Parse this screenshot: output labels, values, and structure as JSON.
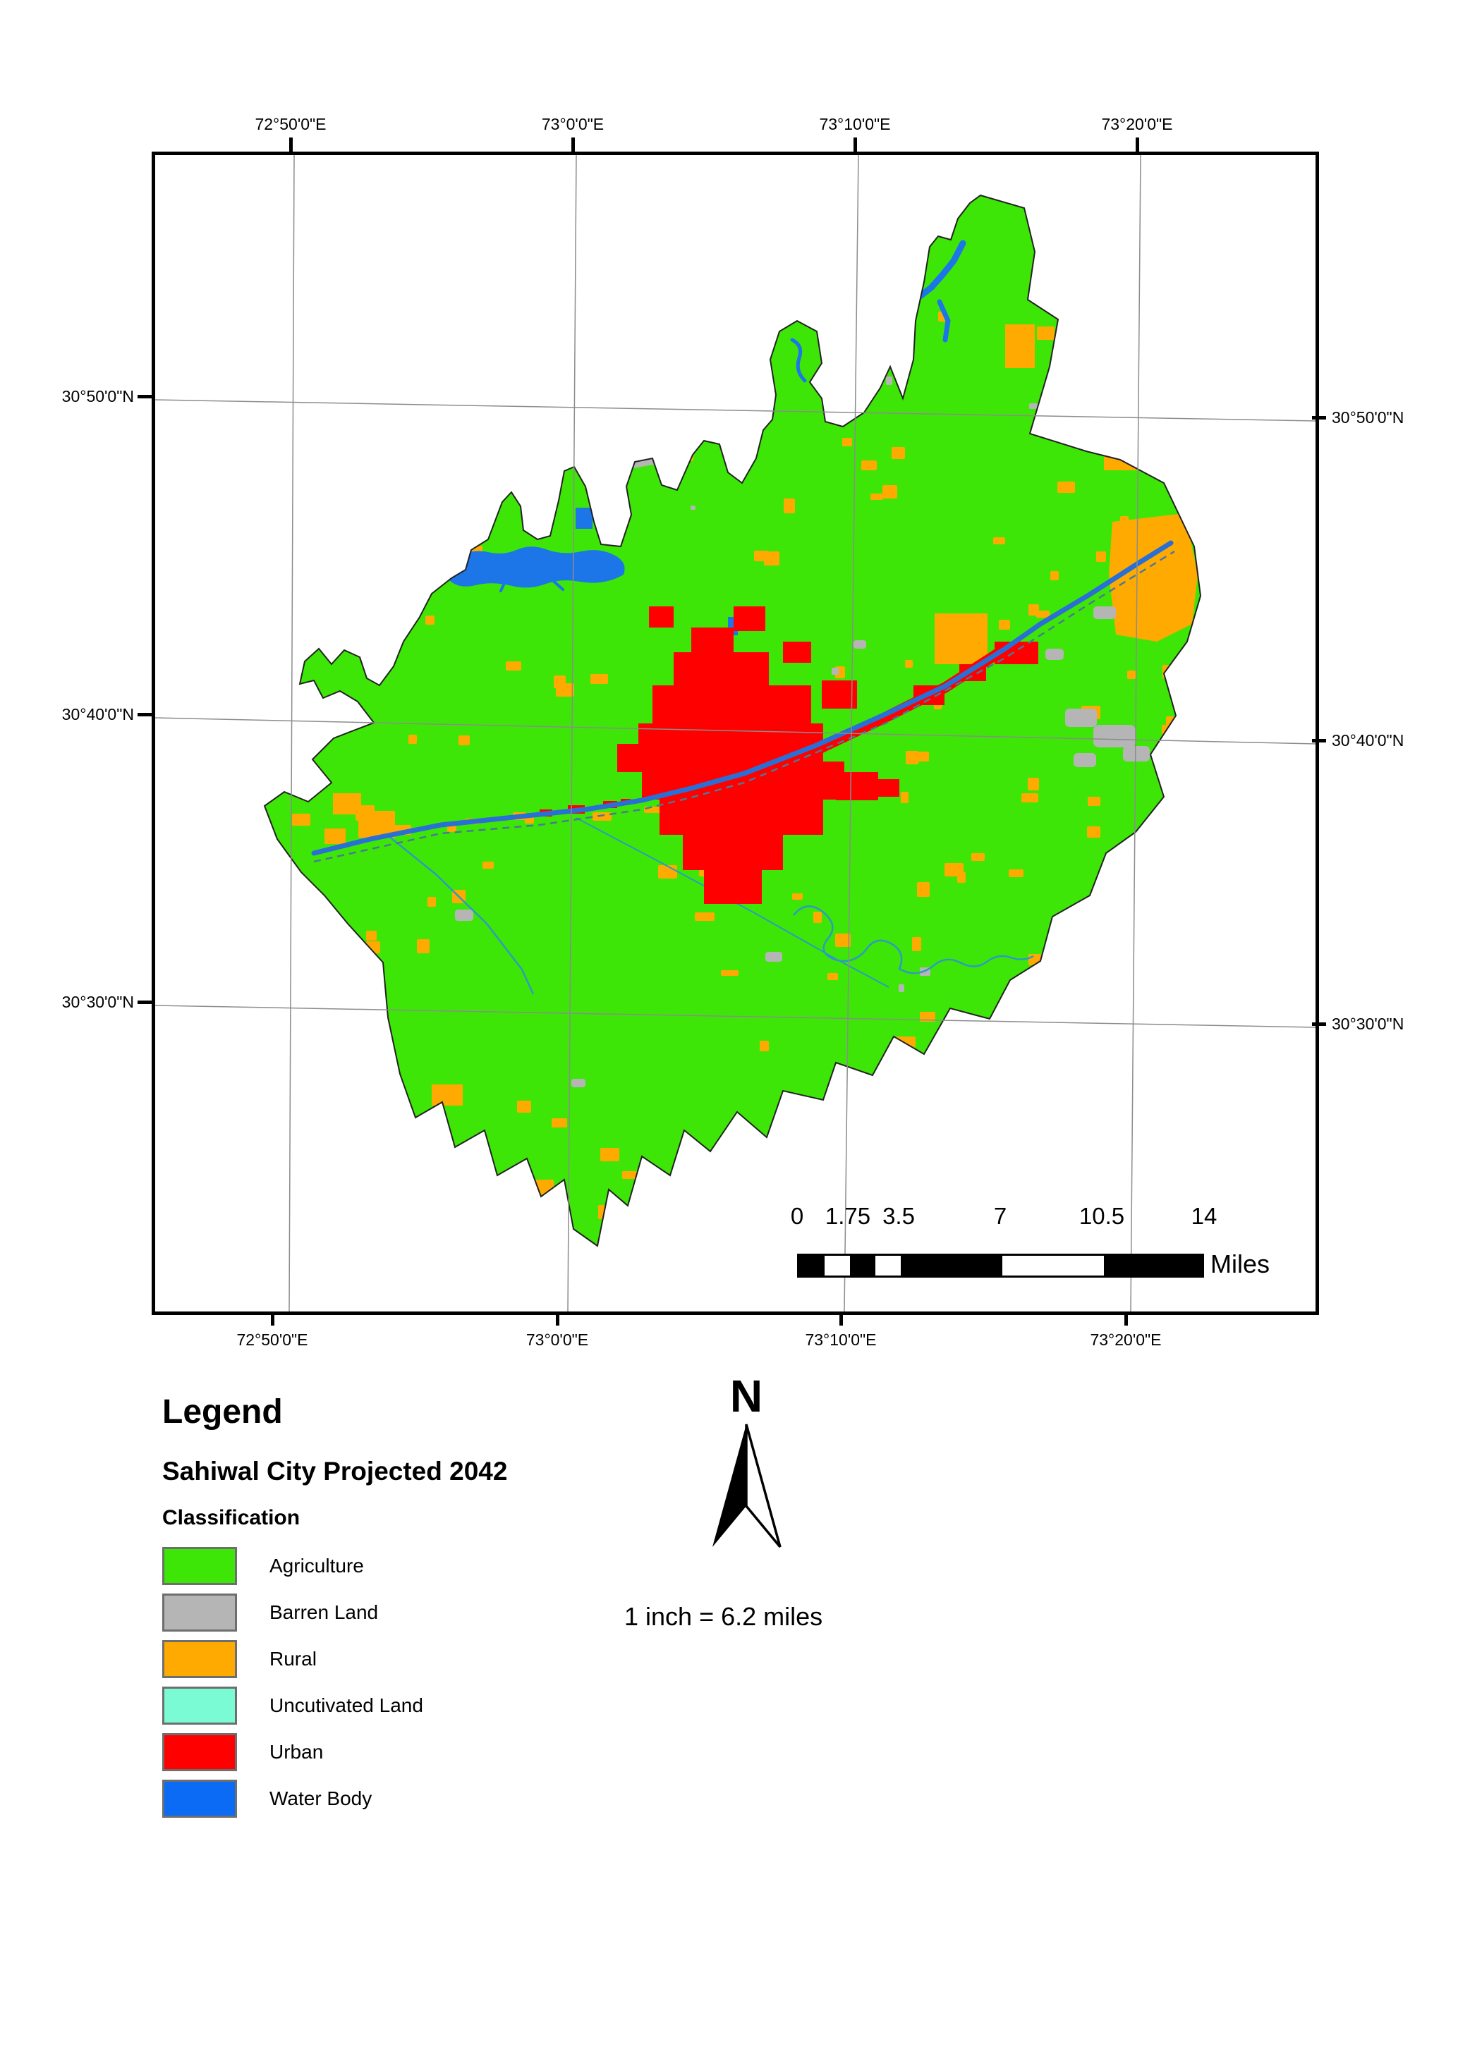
{
  "map": {
    "coordinates": {
      "top": [
        "72°50'0\"E",
        "73°0'0\"E",
        "73°10'0\"E",
        "73°20'0\"E"
      ],
      "bottom": [
        "72°50'0\"E",
        "73°0'0\"E",
        "73°10'0\"E",
        "73°20'0\"E"
      ],
      "left": [
        "30°50'0\"N",
        "30°40'0\"N",
        "30°30'0\"N"
      ],
      "right": [
        "30°50'0\"N",
        "30°40'0\"N",
        "30°30'0\"N"
      ]
    },
    "scalebar": {
      "labels": [
        "0",
        "1.75",
        "3.5",
        "7",
        "10.5",
        "14"
      ],
      "unit": "Miles"
    },
    "scale_text": "1 inch = 6.2 miles",
    "north_label": "N"
  },
  "legend": {
    "title": "Legend",
    "subtitle": "Sahiwal City Projected 2042",
    "section": "Classification",
    "items": [
      {
        "label": "Agriculture",
        "color": "#3DE607"
      },
      {
        "label": "Barren Land",
        "color": "#B5B5B5"
      },
      {
        "label": "Rural",
        "color": "#FFAA00"
      },
      {
        "label": "Uncutivated Land",
        "color": "#7BFBD4"
      },
      {
        "label": "Urban",
        "color": "#FF0000"
      },
      {
        "label": "Water Body",
        "color": "#0C6BF5"
      }
    ]
  },
  "colors": {
    "agriculture": "#3DE607",
    "barren": "#B5B5B5",
    "rural": "#FFAA00",
    "uncultivated": "#7BFBD4",
    "urban": "#FF0000",
    "water": "#0C6BF5",
    "canal": "#2A6FD6",
    "lake": "#1D76E8",
    "river_teal": "#2E9BC1",
    "road_dash": "#4A7A96",
    "graticule": "#8C8C8C",
    "boundary": "#222222"
  },
  "scatter": {
    "seed": 987654321,
    "orange_count": 155,
    "gray_count": 14
  }
}
